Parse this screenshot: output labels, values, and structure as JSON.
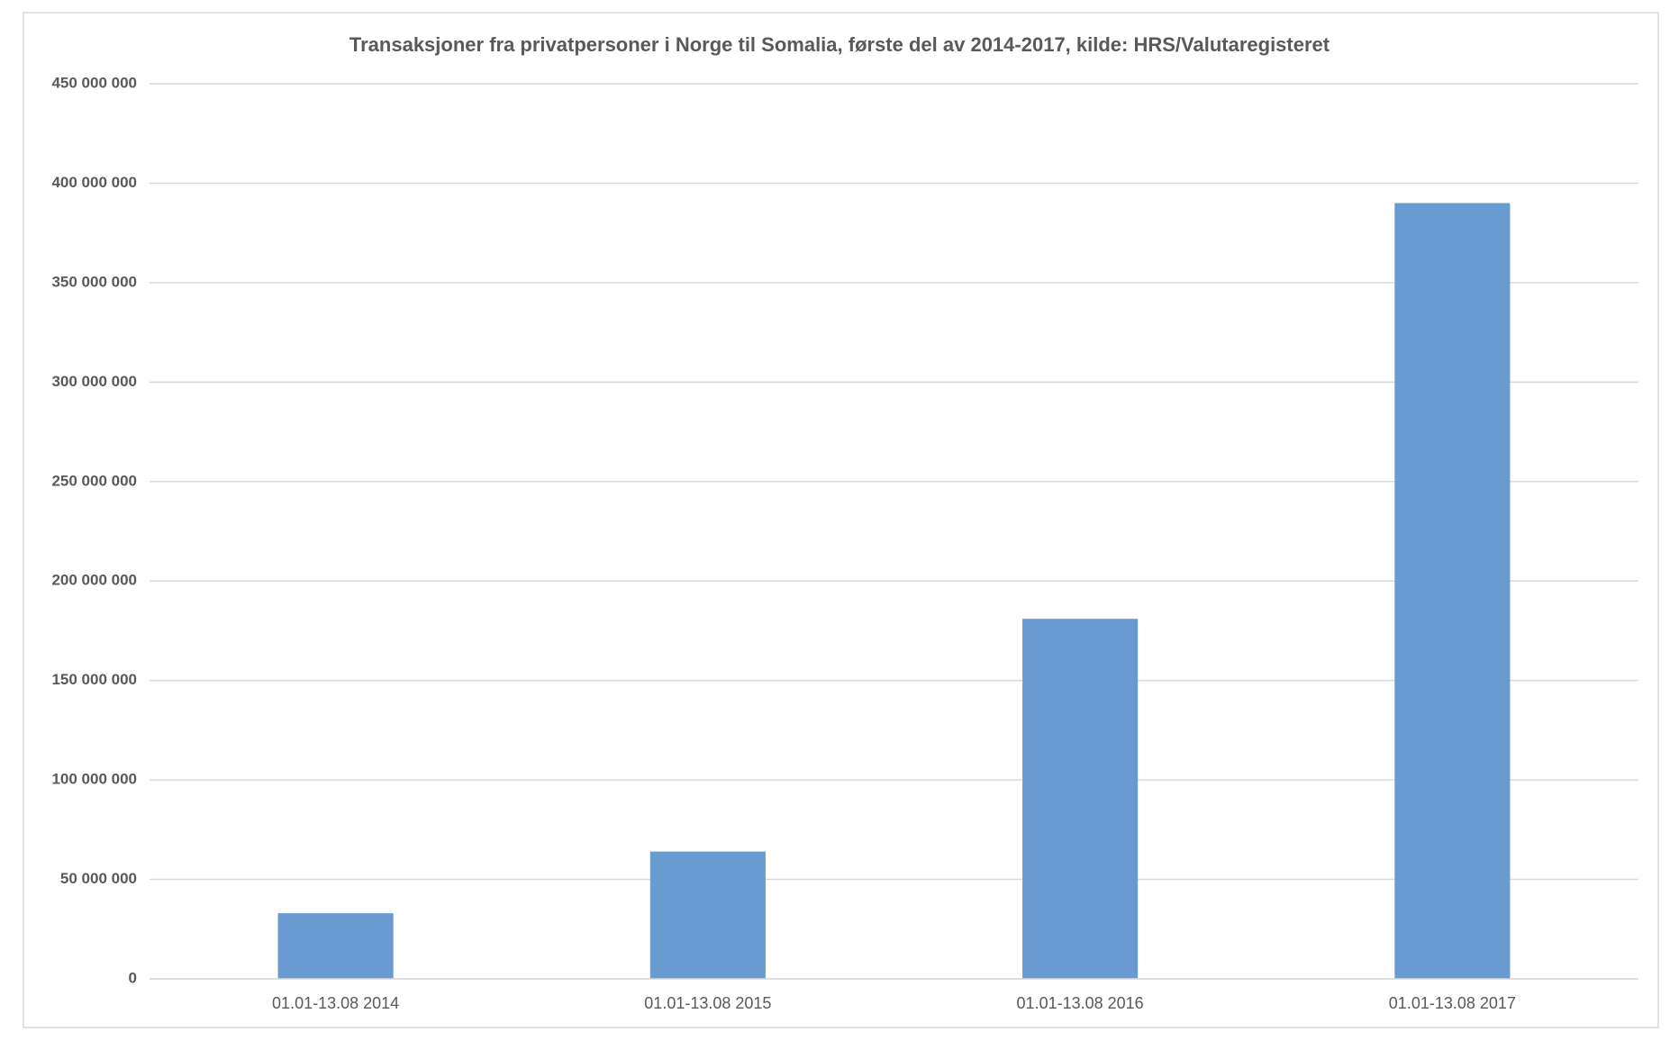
{
  "chart_data": {
    "type": "bar",
    "title": "Transaksjoner fra privatpersoner i Norge til Somalia, første del av 2014-2017, kilde: HRS/Valutaregisteret",
    "categories": [
      "01.01-13.08 2014",
      "01.01-13.08 2015",
      "01.01-13.08 2016",
      "01.01-13.08 2017"
    ],
    "values": [
      33000000,
      64000000,
      181000000,
      390000000
    ],
    "color": "#6a9bd0",
    "ylim": [
      0,
      450000000
    ],
    "yticks": [
      0,
      {
        "value": 50000000,
        "label": "50 000 000"
      },
      {
        "value": 100000000,
        "label": "100 000 000"
      },
      {
        "value": 150000000,
        "label": "150 000 000"
      },
      {
        "value": 200000000,
        "label": "200 000 000"
      },
      {
        "value": 250000000,
        "label": "250 000 000"
      },
      {
        "value": 300000000,
        "label": "300 000 000"
      },
      {
        "value": 350000000,
        "label": "350 000 000"
      },
      {
        "value": 400000000,
        "label": "400 000 000"
      },
      {
        "value": 450000000,
        "label": "450 000 000"
      }
    ],
    "grid": true
  }
}
